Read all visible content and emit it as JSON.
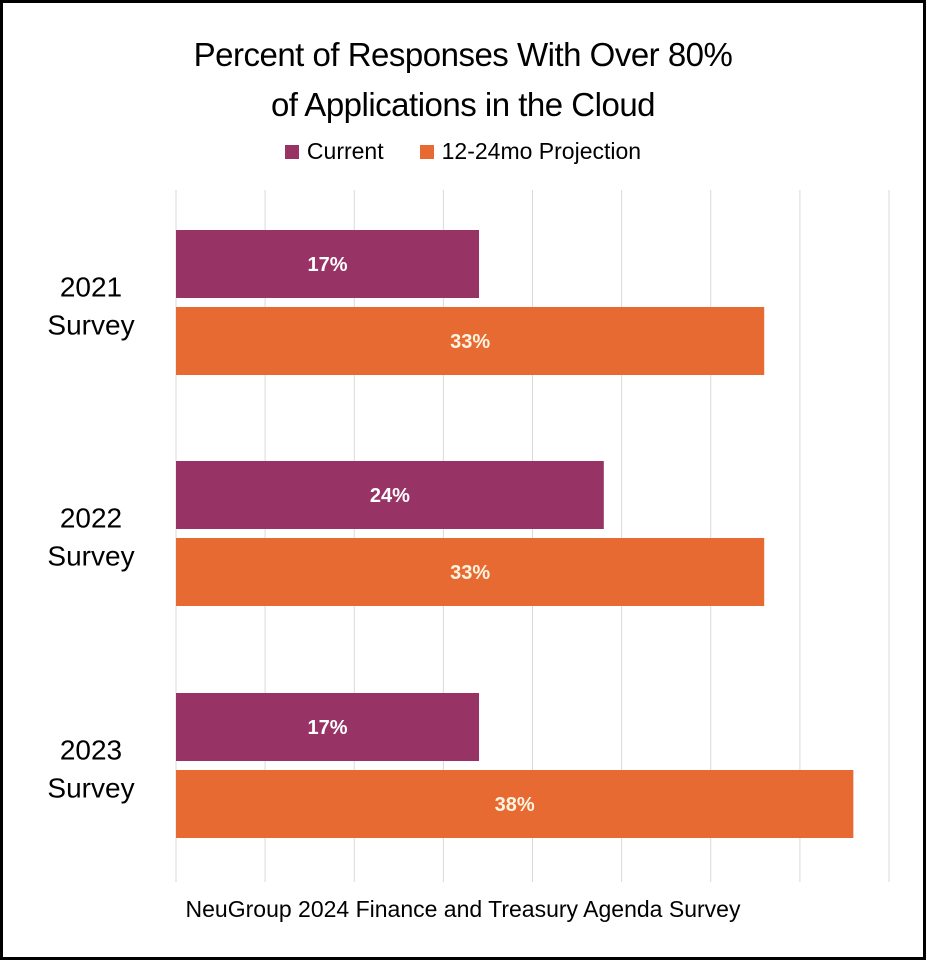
{
  "chart_data": {
    "type": "bar",
    "orientation": "horizontal",
    "title": "Percent of Responses With Over 80% of Applications in the Cloud",
    "title_lines": [
      "Percent of Responses With Over 80%",
      "of Applications in the Cloud"
    ],
    "categories": [
      "2021 Survey",
      "2022 Survey",
      "2023 Survey"
    ],
    "category_lines": [
      [
        "2021",
        "Survey"
      ],
      [
        "2022",
        "Survey"
      ],
      [
        "2023",
        "Survey"
      ]
    ],
    "series": [
      {
        "name": "Current",
        "color": "#983366",
        "label_color": "#ffffff",
        "values": [
          17,
          24,
          17
        ],
        "labels": [
          "17%",
          "24%",
          "17%"
        ]
      },
      {
        "name": "12-24mo Projection",
        "color": "#E76A32",
        "label_color": "#fff4e0",
        "values": [
          33,
          33,
          38
        ],
        "labels": [
          "33%",
          "33%",
          "38%"
        ]
      }
    ],
    "xlabel": "NeuGroup 2024 Finance and Treasury Agenda Survey",
    "ylabel": "",
    "xlim": [
      0,
      40
    ],
    "grid_step": 5,
    "grid": true,
    "legend_position": "top-center",
    "axis_tick_labels_shown": false
  }
}
